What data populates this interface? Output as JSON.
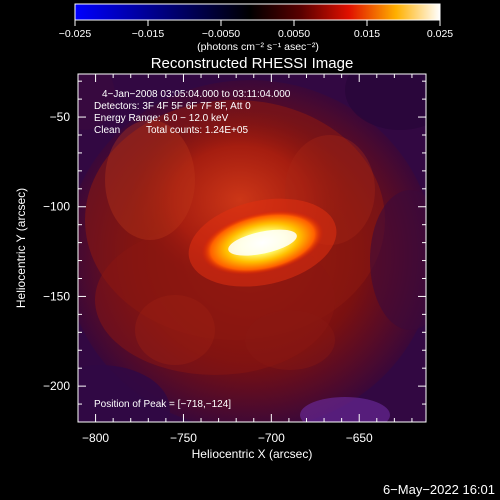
{
  "chart_data": {
    "type": "heatmap",
    "title": "Reconstructed RHESSI Image",
    "xlabel": "Heliocentric X (arcsec)",
    "ylabel": "Heliocentric Y (arcsec)",
    "xlim": [
      -810,
      -612
    ],
    "ylim": [
      -220,
      -26
    ],
    "x_ticks": [
      -800,
      -750,
      -700,
      -650
    ],
    "x_tick_labels": [
      "−800",
      "−750",
      "−700",
      "−650"
    ],
    "y_ticks": [
      -50,
      -100,
      -150,
      -200
    ],
    "y_tick_labels": [
      "−50",
      "−100",
      "−150",
      "−200"
    ],
    "colorbar": {
      "range": [
        -0.025,
        0.025
      ],
      "ticks": [
        -0.025,
        -0.015,
        -0.005,
        0.005,
        0.015,
        0.025
      ],
      "tick_labels": [
        "−0.025",
        "−0.015",
        "−0.0050",
        "0.0050",
        "0.015",
        "0.025"
      ],
      "label": "(photons cm⁻² s⁻¹ asec⁻²)",
      "colors": [
        "#0000ff",
        "#000000",
        "#ff0000",
        "#ffff00",
        "#ffffff"
      ]
    },
    "annotations": [
      "4−Jan−2008 03:05:04.000 to 03:11:04.000",
      "Detectors: 3F 4F 5F 6F 7F 8F, Att 0",
      "Energy Range: 6.0 − 12.0 keV",
      "Clean",
      "Total counts: 1.24E+05"
    ],
    "peak": {
      "label": "Position of Peak = [−718,−124]",
      "x": -718,
      "y": -124
    },
    "source": {
      "x": -705,
      "y": -120
    },
    "timestamp": "6−May−2022 16:01"
  }
}
